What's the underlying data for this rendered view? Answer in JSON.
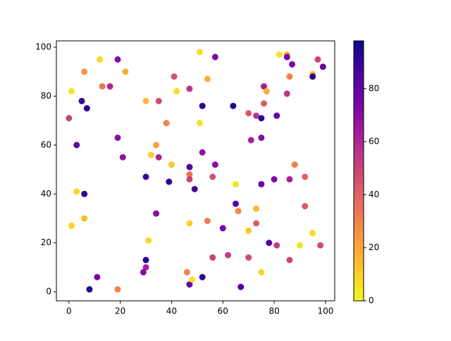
{
  "chart_data": {
    "type": "scatter",
    "x": [
      1,
      0,
      1,
      3,
      3,
      5,
      6,
      6,
      6,
      7,
      8,
      11,
      12,
      13,
      16,
      19,
      19,
      19,
      21,
      22,
      29,
      30,
      30,
      30,
      30,
      31,
      32,
      34,
      34,
      35,
      35,
      38,
      39,
      40,
      41,
      42,
      46,
      47,
      47,
      47,
      47,
      47,
      47,
      48,
      49,
      51,
      51,
      52,
      52,
      52,
      54,
      54,
      56,
      56,
      57,
      57,
      60,
      62,
      64,
      65,
      65,
      66,
      67,
      70,
      70,
      70,
      71,
      73,
      73,
      73,
      75,
      75,
      75,
      75,
      76,
      76,
      77,
      78,
      80,
      81,
      81,
      82,
      85,
      85,
      85,
      86,
      86,
      86,
      87,
      88,
      90,
      92,
      92,
      95,
      95,
      95,
      97,
      98,
      99
    ],
    "values": [
      82,
      71,
      27,
      60,
      41,
      78,
      90,
      40,
      30,
      75,
      1,
      6,
      95,
      84,
      84,
      95,
      63,
      1,
      55,
      90,
      8,
      78,
      47,
      13,
      10,
      21,
      56,
      60,
      32,
      78,
      55,
      69,
      45,
      52,
      88,
      82,
      8,
      83,
      51,
      48,
      46,
      28,
      3,
      5,
      42,
      98,
      69,
      76,
      57,
      6,
      87,
      29,
      47,
      14,
      96,
      52,
      26,
      15,
      76,
      44,
      36,
      33,
      2,
      73,
      25,
      14,
      62,
      72,
      34,
      28,
      8,
      71,
      63,
      44,
      84,
      77,
      82,
      20,
      46,
      72,
      19,
      97,
      97,
      96,
      81,
      88,
      46,
      13,
      93,
      52,
      19,
      47,
      35,
      89,
      88,
      24,
      95,
      19,
      92
    ],
    "color_values": [
      5,
      50,
      10,
      80,
      8,
      90,
      25,
      92,
      15,
      92,
      95,
      75,
      8,
      35,
      60,
      72,
      70,
      30,
      68,
      18,
      72,
      15,
      90,
      92,
      62,
      8,
      10,
      22,
      70,
      48,
      60,
      30,
      92,
      12,
      45,
      8,
      30,
      55,
      85,
      35,
      50,
      10,
      80,
      5,
      88,
      5,
      5,
      92,
      68,
      92,
      18,
      32,
      45,
      50,
      72,
      70,
      75,
      52,
      95,
      5,
      85,
      28,
      85,
      42,
      12,
      48,
      62,
      55,
      15,
      42,
      8,
      92,
      72,
      78,
      62,
      42,
      18,
      85,
      75,
      80,
      52,
      5,
      18,
      75,
      55,
      30,
      62,
      50,
      75,
      32,
      5,
      40,
      42,
      15,
      92,
      8,
      50,
      48,
      80
    ],
    "colormap": "plasma_r",
    "xlim": [
      -4.9,
      103.6
    ],
    "ylim": [
      -3.7,
      102.6
    ],
    "xticks": [
      0,
      20,
      40,
      60,
      80,
      100
    ],
    "yticks": [
      0,
      20,
      40,
      60,
      80,
      100
    ],
    "clim": [
      0,
      98
    ],
    "cticks": [
      0,
      20,
      40,
      60,
      80
    ]
  }
}
